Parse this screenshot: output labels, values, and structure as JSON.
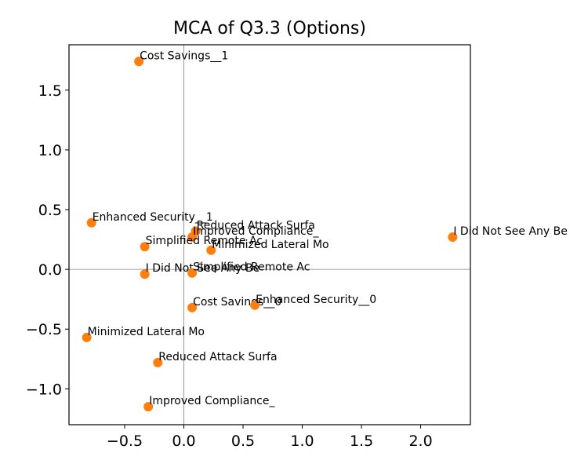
{
  "chart_data": {
    "type": "scatter",
    "title": "MCA of Q3.3 (Options)",
    "xlabel": "",
    "ylabel": "",
    "xlim": [
      -0.97,
      2.42
    ],
    "ylim": [
      -1.3,
      1.88
    ],
    "x_ticks": [
      -0.5,
      0.0,
      0.5,
      1.0,
      1.5,
      2.0
    ],
    "x_tick_labels": [
      "−0.5",
      "0.0",
      "0.5",
      "1.0",
      "1.5",
      "2.0"
    ],
    "y_ticks": [
      -1.0,
      -0.5,
      0.0,
      0.5,
      1.0,
      1.5
    ],
    "y_tick_labels": [
      "−1.0",
      "−0.5",
      "0.0",
      "0.5",
      "1.0",
      "1.5"
    ],
    "reference_lines": {
      "x": 0,
      "y": 0
    },
    "grid": false,
    "marker_color": "#ff7f0e",
    "points": [
      {
        "label": "Cost Savings__1",
        "x": -0.38,
        "y": 1.74
      },
      {
        "label": "Enhanced Security__1",
        "x": -0.78,
        "y": 0.39
      },
      {
        "label": "Reduced Attack Surfa",
        "x": 0.1,
        "y": 0.32
      },
      {
        "label": "Improved Compliance_",
        "x": 0.07,
        "y": 0.27
      },
      {
        "label": "Simplified Remote Ac",
        "x": -0.33,
        "y": 0.19
      },
      {
        "label": "Minimized Lateral Mo",
        "x": 0.23,
        "y": 0.16
      },
      {
        "label": "I Did Not See Any Be",
        "x": 2.27,
        "y": 0.27
      },
      {
        "label": "I Did Not See Any Be",
        "x": -0.33,
        "y": -0.04
      },
      {
        "label": "Simplified Remote Ac",
        "x": 0.07,
        "y": -0.03
      },
      {
        "label": "Cost Savings__0",
        "x": 0.07,
        "y": -0.32
      },
      {
        "label": "Enhanced Security__0",
        "x": 0.6,
        "y": -0.3
      },
      {
        "label": "Minimized Lateral Mo",
        "x": -0.82,
        "y": -0.57
      },
      {
        "label": "Reduced Attack Surfa",
        "x": -0.22,
        "y": -0.78
      },
      {
        "label": "Improved Compliance_",
        "x": -0.3,
        "y": -1.15
      }
    ]
  }
}
